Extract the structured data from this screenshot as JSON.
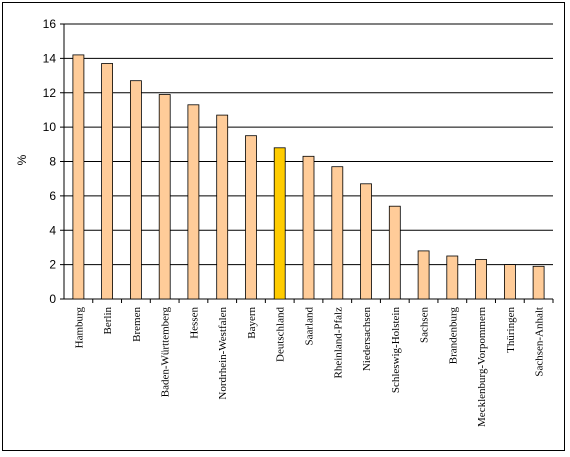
{
  "chart_data": {
    "type": "bar",
    "title": "",
    "xlabel": "",
    "ylabel": "%",
    "ylim": [
      0,
      16
    ],
    "yticks": [
      0,
      2,
      4,
      6,
      8,
      10,
      12,
      14,
      16
    ],
    "grid": true,
    "legend": "none",
    "categories": [
      "Hamburg",
      "Berlin",
      "Bremen",
      "Baden-Württemberg",
      "Hessen",
      "Nordrhein-Westfalen",
      "Bayern",
      "Deutschland",
      "Saarland",
      "Rheinland-Pfalz",
      "Niedersachsen",
      "Schleswig-Holstein",
      "Sachsen",
      "Brandenburg",
      "Mecklenburg-Vorpommern",
      "Thüringen",
      "Sachsen-Anhalt"
    ],
    "values": [
      14.2,
      13.7,
      12.7,
      11.9,
      11.3,
      10.7,
      9.5,
      8.8,
      8.3,
      7.7,
      6.7,
      5.4,
      2.8,
      2.5,
      2.3,
      2.0,
      1.9
    ],
    "highlight": "Deutschland",
    "colors": {
      "bar": "#FFCC99",
      "highlight": "#FFCC00",
      "outline": "#000000",
      "grid": "#000000"
    }
  }
}
